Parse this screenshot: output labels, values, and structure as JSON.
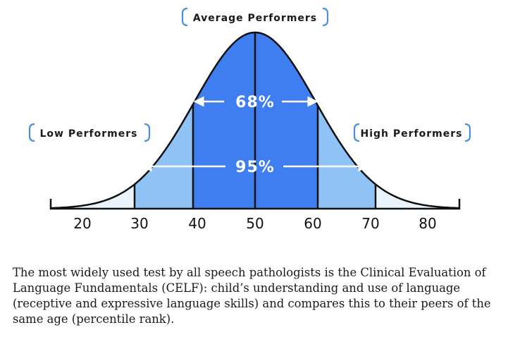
{
  "diagram": {
    "labels": {
      "average": "Average Performers",
      "low": "Low Performers",
      "high": "High Performers"
    },
    "percentages": {
      "inner": "68%",
      "outer": "95%"
    },
    "axis_ticks": [
      "20",
      "30",
      "40",
      "50",
      "60",
      "70",
      "80"
    ],
    "colors": {
      "center_band": "#3f7ef0",
      "middle_band": "#8fc3f5",
      "tail_band": "#e9f4fd",
      "outline": "#111111",
      "bracket": "#4a90e2"
    }
  },
  "caption": "The most widely used test by all speech pathologists is the Clinical Evaluation of Language Fundamentals (CELF): child’s understanding and use of language (receptive and expressive language skills) and compares this to their peers of the same age (percentile rank)."
}
